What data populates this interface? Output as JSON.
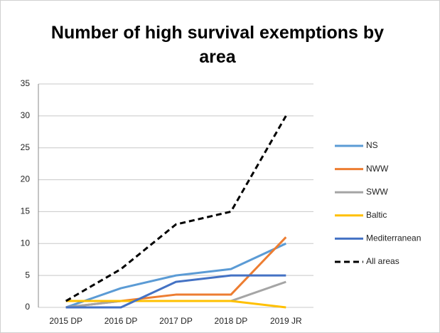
{
  "chart_data": {
    "type": "line",
    "title": "Number of high survival exemptions by area",
    "categories": [
      "2015 DP",
      "2016 DP",
      "2017 DP",
      "2018 DP",
      "2019 JR"
    ],
    "series": [
      {
        "name": "NS",
        "color": "#5b9bd5",
        "values": [
          0,
          3,
          5,
          6,
          10
        ]
      },
      {
        "name": "NWW",
        "color": "#ed7d31",
        "values": [
          0,
          1,
          2,
          2,
          11
        ]
      },
      {
        "name": "SWW",
        "color": "#a5a5a5",
        "values": [
          0,
          1,
          1,
          1,
          4
        ]
      },
      {
        "name": "Baltic",
        "color": "#ffc000",
        "values": [
          1,
          1,
          1,
          1,
          0
        ]
      },
      {
        "name": "Mediterranean",
        "color": "#4472c4",
        "values": [
          0,
          0,
          4,
          5,
          5
        ]
      },
      {
        "name": "All areas",
        "color": "#000000",
        "dashed": true,
        "values": [
          1,
          6,
          13,
          15,
          30
        ]
      }
    ],
    "ylim": [
      0,
      35
    ],
    "yticks": [
      0,
      5,
      10,
      15,
      20,
      25,
      30,
      35
    ],
    "grid": true,
    "legend": "right"
  }
}
